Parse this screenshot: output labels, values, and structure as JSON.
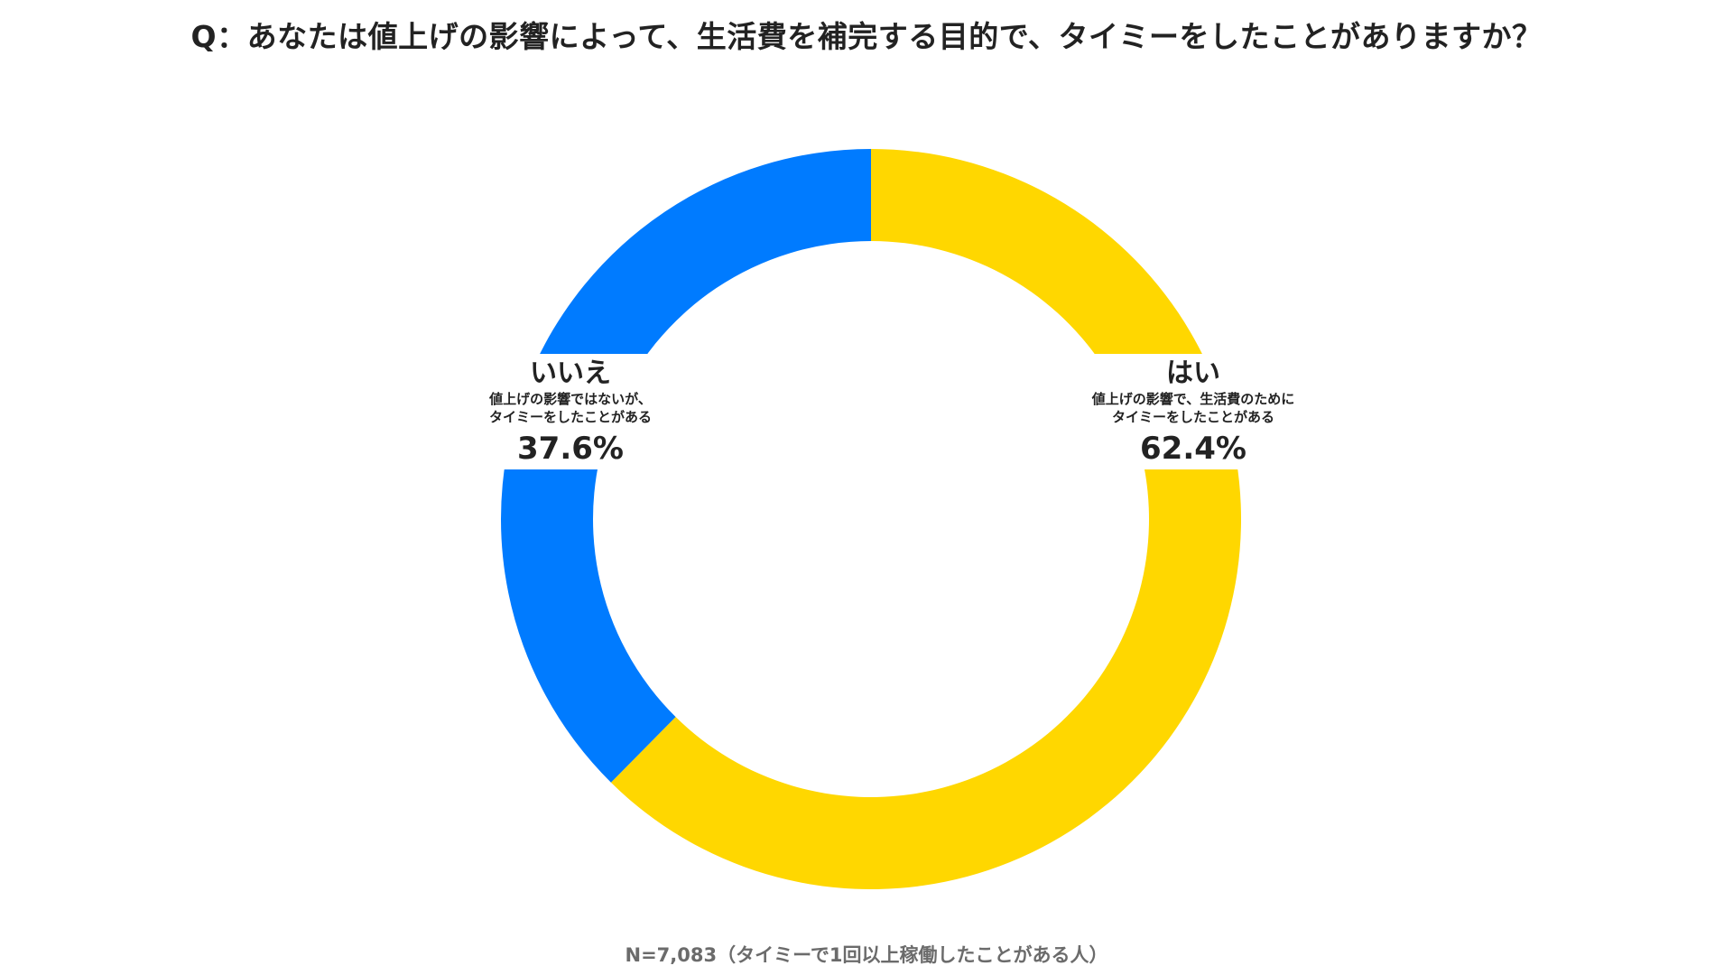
{
  "title": "Q：あなたは値上げの影響によって、生活費を補完する目的で、タイミーをしたことがありますか？",
  "footnote": "N=7,083（タイミーで1回以上稼働したことがある人）",
  "chart_data": {
    "type": "pie",
    "donut": true,
    "start": "top",
    "direction": "clockwise",
    "slices": [
      {
        "label": "はい",
        "description_lines": [
          "値上げの影響で、生活費のために",
          "タイミーをしたことがある"
        ],
        "value": 62.4,
        "value_label": "62.4%",
        "color": "#FFD700"
      },
      {
        "label": "いいえ",
        "description_lines": [
          "値上げの影響ではないが、",
          "タイミーをしたことがある"
        ],
        "value": 37.6,
        "value_label": "37.6%",
        "color": "#007BFF"
      }
    ]
  }
}
